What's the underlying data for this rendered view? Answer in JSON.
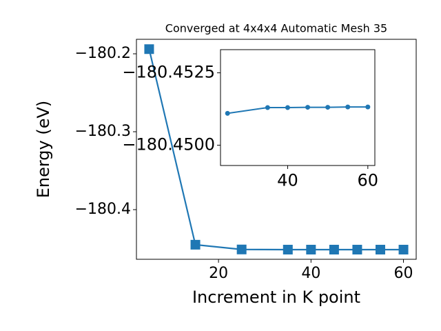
{
  "chart_data": [
    {
      "type": "line",
      "title": "Converged at 4x4x4 Automatic Mesh 35",
      "x_label": "Increment in K point",
      "y_label": "Energy (eV)",
      "x": [
        5,
        15,
        25,
        35,
        40,
        45,
        50,
        55,
        60
      ],
      "series": [
        {
          "color": "#1f77b4",
          "marker": "square",
          "values": [
            -180.194,
            -180.445,
            -180.4511,
            -180.4513,
            -180.4513,
            -180.4513,
            -180.4513,
            -180.4513,
            -180.4513
          ]
        }
      ],
      "xlim": [
        2.25,
        62.75
      ],
      "xticks": [
        20,
        40,
        60
      ],
      "ylim": [
        -180.4637,
        -180.1814
      ],
      "yticks": [
        {
          "value": -180.2,
          "label": "−180.2"
        },
        {
          "value": -180.3,
          "label": "−180.3"
        },
        {
          "value": -180.4,
          "label": "−180.4"
        }
      ]
    },
    {
      "type": "line",
      "x": [
        25,
        35,
        40,
        45,
        50,
        55,
        60
      ],
      "series": [
        {
          "color": "#1f77b4",
          "marker": "circle",
          "values": [
            -180.4511,
            -180.4513,
            -180.4513,
            -180.45131,
            -180.45131,
            -180.45132,
            -180.45132
          ]
        }
      ],
      "xlim": [
        23.25,
        61.75
      ],
      "xticks": [
        40,
        60
      ],
      "ylim": [
        -180.4493,
        -180.4533
      ],
      "yticks": [
        {
          "value": -180.4525,
          "label": "−180.4525"
        },
        {
          "value": -180.45,
          "label": "−180.4500"
        }
      ]
    }
  ]
}
